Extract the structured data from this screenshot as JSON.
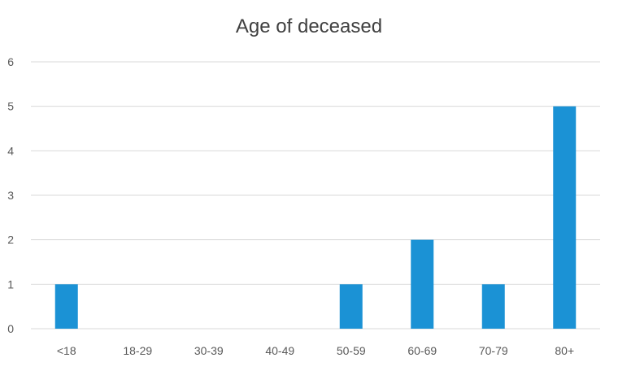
{
  "chart_data": {
    "type": "bar",
    "title": "Age of deceased",
    "categories": [
      "<18",
      "18-29",
      "30-39",
      "40-49",
      "50-59",
      "60-69",
      "70-79",
      "80+"
    ],
    "values": [
      1,
      0,
      0,
      0,
      1,
      2,
      1,
      5
    ],
    "xlabel": "",
    "ylabel": "",
    "ylim": [
      0,
      6
    ],
    "yticks": [
      0,
      1,
      2,
      3,
      4,
      5,
      6
    ],
    "grid": true,
    "legend": "none",
    "colors": {
      "bar": "#1b92d5",
      "grid": "#d9d9d9",
      "text": "#595959",
      "title": "#404040"
    }
  }
}
